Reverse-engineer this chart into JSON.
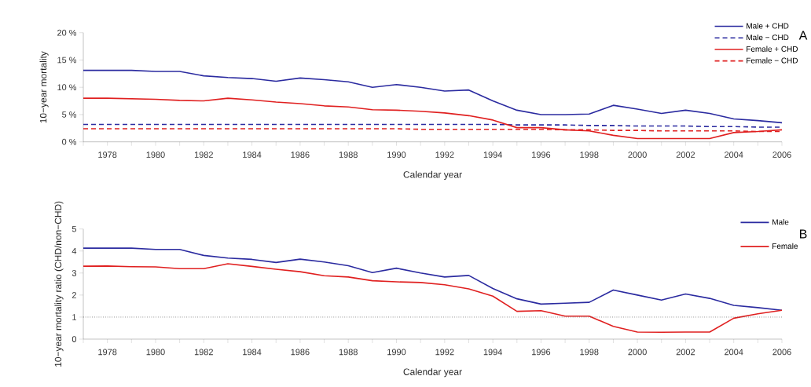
{
  "chart_data": [
    {
      "type": "line",
      "xlabel": "Calendar year",
      "ylabel": "10−year mortality",
      "x": [
        1977,
        1978,
        1979,
        1980,
        1981,
        1982,
        1983,
        1984,
        1985,
        1986,
        1987,
        1988,
        1989,
        1990,
        1991,
        1992,
        1993,
        1994,
        1995,
        1996,
        1997,
        1998,
        1999,
        2000,
        2001,
        2002,
        2003,
        2004,
        2005,
        2006
      ],
      "series": [
        {
          "name": "Male + CHD",
          "color": "#2b2ba0",
          "line_style": "solid",
          "values": [
            13.1,
            13.1,
            13.1,
            12.9,
            12.9,
            12.1,
            11.8,
            11.6,
            11.1,
            11.7,
            11.4,
            11.0,
            10.0,
            10.5,
            10.0,
            9.3,
            9.5,
            7.5,
            5.8,
            5.0,
            5.0,
            5.1,
            6.7,
            6.0,
            5.2,
            5.8,
            5.2,
            4.2,
            3.9,
            3.5
          ]
        },
        {
          "name": "Male − CHD",
          "color": "#2b2ba0",
          "line_style": "dashed",
          "values": [
            3.2,
            3.2,
            3.2,
            3.2,
            3.2,
            3.2,
            3.2,
            3.2,
            3.2,
            3.2,
            3.2,
            3.2,
            3.2,
            3.2,
            3.2,
            3.2,
            3.2,
            3.2,
            3.1,
            3.1,
            3.1,
            3.0,
            3.0,
            2.9,
            2.9,
            2.9,
            2.8,
            2.8,
            2.7,
            2.7
          ]
        },
        {
          "name": "Female + CHD",
          "color": "#e02020",
          "line_style": "solid",
          "values": [
            8.0,
            8.0,
            7.9,
            7.8,
            7.6,
            7.5,
            8.0,
            7.7,
            7.3,
            7.0,
            6.6,
            6.4,
            5.9,
            5.8,
            5.6,
            5.3,
            4.8,
            4.0,
            2.6,
            2.6,
            2.2,
            2.0,
            1.2,
            0.6,
            0.6,
            0.6,
            0.6,
            1.7,
            1.9,
            2.2
          ]
        },
        {
          "name": "Female − CHD",
          "color": "#e02020",
          "line_style": "dashed",
          "values": [
            2.4,
            2.4,
            2.4,
            2.4,
            2.4,
            2.4,
            2.4,
            2.4,
            2.4,
            2.4,
            2.4,
            2.4,
            2.4,
            2.4,
            2.3,
            2.3,
            2.3,
            2.3,
            2.3,
            2.3,
            2.2,
            2.2,
            2.1,
            2.1,
            2.0,
            2.0,
            2.0,
            2.0,
            1.9,
            1.9
          ]
        }
      ],
      "xlim": [
        1977,
        2006
      ],
      "xticks": [
        {
          "value": 1977,
          "label": null
        },
        1978,
        {
          "value": 1979,
          "label": null
        },
        1980,
        {
          "value": 1981,
          "label": null
        },
        1982,
        {
          "value": 1983,
          "label": null
        },
        1984,
        {
          "value": 1985,
          "label": null
        },
        1986,
        {
          "value": 1987,
          "label": null
        },
        1988,
        {
          "value": 1989,
          "label": null
        },
        1990,
        {
          "value": 1991,
          "label": null
        },
        1992,
        {
          "value": 1993,
          "label": null
        },
        1994,
        {
          "value": 1995,
          "label": null
        },
        1996,
        {
          "value": 1997,
          "label": null
        },
        1998,
        {
          "value": 1999,
          "label": null
        },
        2000,
        {
          "value": 2001,
          "label": null
        },
        2002,
        {
          "value": 2003,
          "label": null
        },
        2004,
        {
          "value": 2005,
          "label": null
        },
        2006
      ],
      "ylim": [
        0,
        20
      ],
      "yticks": [
        {
          "value": 0,
          "label": "0 %"
        },
        {
          "value": 5,
          "label": "5 %"
        },
        {
          "value": 10,
          "label": "10 %"
        },
        {
          "value": 15,
          "label": "15 %"
        },
        {
          "value": 20,
          "label": "20 %"
        }
      ],
      "legend": "top right",
      "annotations": [
        "A"
      ]
    },
    {
      "type": "line",
      "xlabel": "Calendar year",
      "ylabel": "10−year mortality ratio (CHD/non−CHD)",
      "x": [
        1977,
        1978,
        1979,
        1980,
        1981,
        1982,
        1983,
        1984,
        1985,
        1986,
        1987,
        1988,
        1989,
        1990,
        1991,
        1992,
        1993,
        1994,
        1995,
        1996,
        1997,
        1998,
        1999,
        2000,
        2001,
        2002,
        2003,
        2004,
        2005,
        2006
      ],
      "series": [
        {
          "name": "Male",
          "color": "#2b2ba0",
          "line_style": "solid",
          "values": [
            4.13,
            4.13,
            4.13,
            4.07,
            4.07,
            3.8,
            3.68,
            3.62,
            3.48,
            3.63,
            3.5,
            3.33,
            3.02,
            3.22,
            3.0,
            2.82,
            2.89,
            2.3,
            1.83,
            1.59,
            1.63,
            1.67,
            2.23,
            2.0,
            1.77,
            2.05,
            1.85,
            1.53,
            1.43,
            1.31
          ]
        },
        {
          "name": "Female",
          "color": "#e02020",
          "line_style": "solid",
          "values": [
            3.31,
            3.32,
            3.29,
            3.28,
            3.2,
            3.2,
            3.42,
            3.3,
            3.17,
            3.06,
            2.88,
            2.82,
            2.65,
            2.6,
            2.57,
            2.47,
            2.28,
            1.95,
            1.26,
            1.29,
            1.04,
            1.04,
            0.58,
            0.32,
            0.31,
            0.32,
            0.32,
            0.95,
            1.15,
            1.31
          ]
        }
      ],
      "xlim": [
        1977,
        2006
      ],
      "xticks": [
        {
          "value": 1977,
          "label": null
        },
        1978,
        {
          "value": 1979,
          "label": null
        },
        1980,
        {
          "value": 1981,
          "label": null
        },
        1982,
        {
          "value": 1983,
          "label": null
        },
        1984,
        {
          "value": 1985,
          "label": null
        },
        1986,
        {
          "value": 1987,
          "label": null
        },
        1988,
        {
          "value": 1989,
          "label": null
        },
        1990,
        {
          "value": 1991,
          "label": null
        },
        1992,
        {
          "value": 1993,
          "label": null
        },
        1994,
        {
          "value": 1995,
          "label": null
        },
        1996,
        {
          "value": 1997,
          "label": null
        },
        1998,
        {
          "value": 1999,
          "label": null
        },
        2000,
        {
          "value": 2001,
          "label": null
        },
        2002,
        {
          "value": 2003,
          "label": null
        },
        2004,
        {
          "value": 2005,
          "label": null
        },
        2006
      ],
      "ylim": [
        0,
        5
      ],
      "yticks": [
        0,
        1,
        2,
        3,
        4,
        5
      ],
      "ref_lines": [
        {
          "axis": "y",
          "value": 1,
          "color": "#555555",
          "line_style": "dotted"
        }
      ],
      "legend": "top right",
      "annotations": [
        "B"
      ]
    }
  ]
}
